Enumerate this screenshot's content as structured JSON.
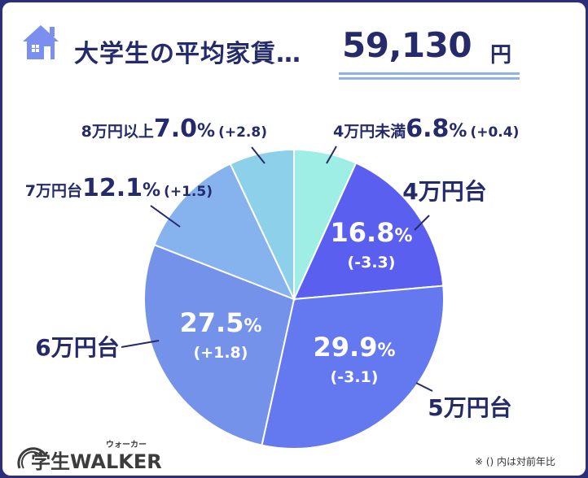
{
  "header": {
    "title": "大学生の平均家賃…",
    "average_rent": "59,130",
    "currency_unit": "円",
    "icon": "house-icon"
  },
  "colors": {
    "background": "#ffffff",
    "border": "#2b2f7a",
    "text_dark": "#252a6b",
    "text_on_slice": "#ffffff",
    "underline": "#8fb3e8"
  },
  "chart_data": {
    "type": "pie",
    "title": "大学生の平均家賃…59,130円",
    "note": "※ () 内は対前年比",
    "slices": [
      {
        "label": "4万円未満",
        "value": 6.8,
        "value_text": "6.8",
        "change": "(+0.4)",
        "color": "#9eeee6"
      },
      {
        "label": "4万円台",
        "value": 16.8,
        "value_text": "16.8",
        "change": "(-3.3)",
        "color": "#5a5ff0"
      },
      {
        "label": "5万円台",
        "value": 29.9,
        "value_text": "29.9",
        "change": "(-3.1)",
        "color": "#6478f0"
      },
      {
        "label": "6万円台",
        "value": 27.5,
        "value_text": "27.5",
        "change": "(+1.8)",
        "color": "#7592ea"
      },
      {
        "label": "7万円台",
        "value": 12.1,
        "value_text": "12.1",
        "change": "(+1.5)",
        "color": "#86b3ee"
      },
      {
        "label": "8万円以上",
        "value": 7.0,
        "value_text": "7.0",
        "change": "(+2.8)",
        "color": "#8dd0ea"
      }
    ]
  },
  "footer": {
    "logo_text": "学生WALKER",
    "logo_sub": "ウォーカー",
    "note": "※ () 内は対前年比"
  }
}
